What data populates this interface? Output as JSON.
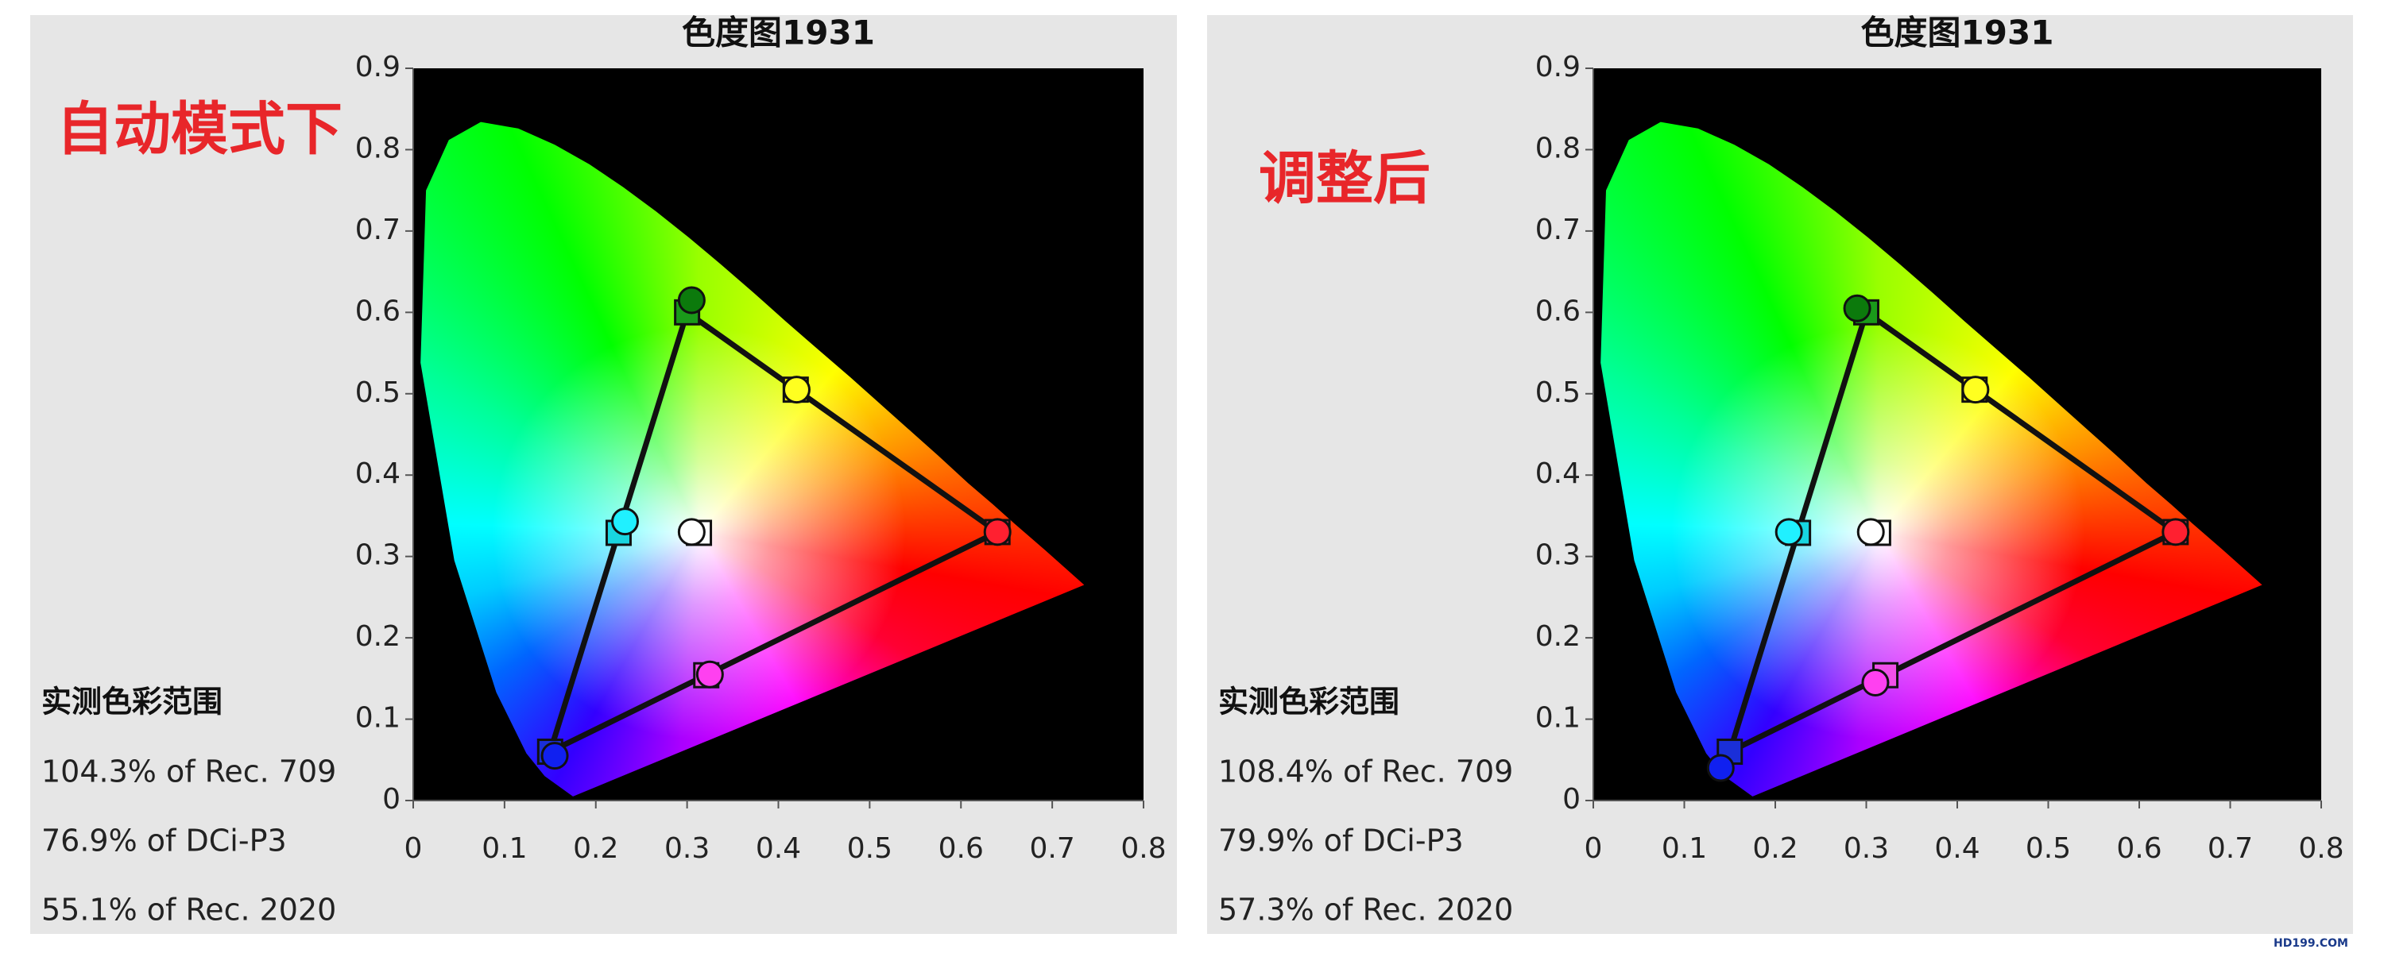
{
  "chart_data": [
    {
      "type": "scatter",
      "title": "色度图1931",
      "annotation": "自动模式下",
      "gamut_title": "实测色彩范围",
      "gamut_results": [
        "104.3% of Rec. 709",
        "76.9% of DCi-P3",
        "55.1% of Rec. 2020"
      ],
      "xlim": [
        0,
        0.8
      ],
      "ylim": [
        0,
        0.9
      ],
      "xticks": [
        0,
        0.1,
        0.2,
        0.3,
        0.4,
        0.5,
        0.6,
        0.7,
        0.8
      ],
      "yticks": [
        0,
        0.1,
        0.2,
        0.3,
        0.4,
        0.5,
        0.6,
        0.7,
        0.8,
        0.9
      ],
      "spectral_locus": {
        "x": [
          0.175,
          0.144,
          0.124,
          0.091,
          0.045,
          0.008,
          0.014,
          0.039,
          0.074,
          0.115,
          0.155,
          0.193,
          0.23,
          0.266,
          0.302,
          0.337,
          0.373,
          0.408,
          0.444,
          0.479,
          0.512,
          0.547,
          0.575,
          0.608,
          0.635,
          0.658,
          0.692,
          0.735
        ],
        "y": [
          0.005,
          0.03,
          0.058,
          0.133,
          0.295,
          0.538,
          0.75,
          0.812,
          0.834,
          0.826,
          0.806,
          0.782,
          0.754,
          0.724,
          0.692,
          0.659,
          0.624,
          0.589,
          0.554,
          0.52,
          0.487,
          0.452,
          0.424,
          0.39,
          0.364,
          0.341,
          0.308,
          0.265
        ]
      },
      "series": [
        {
          "marker": "square",
          "x": [
            0.64,
            0.3,
            0.15,
            0.225,
            0.321,
            0.419,
            0.313
          ],
          "y": [
            0.33,
            0.6,
            0.06,
            0.329,
            0.154,
            0.505,
            0.329
          ],
          "colors": [
            "#e8305a",
            "#1a9a1a",
            "#1a2fd8",
            "#18d6e0",
            "#f050e8",
            "#f4f000",
            "#ffffff"
          ]
        },
        {
          "marker": "circle",
          "x": [
            0.64,
            0.305,
            0.155,
            0.232,
            0.325,
            0.42,
            0.305
          ],
          "y": [
            0.33,
            0.615,
            0.055,
            0.343,
            0.155,
            0.505,
            0.33
          ],
          "colors": [
            "#ff2030",
            "#0c7a0c",
            "#1020f0",
            "#20f0ff",
            "#ff40f0",
            "#ffff20",
            "#ffffff"
          ]
        }
      ]
    },
    {
      "type": "scatter",
      "title": "色度图1931",
      "annotation": "调整后",
      "gamut_title": "实测色彩范围",
      "gamut_results": [
        "108.4% of Rec. 709",
        "79.9% of DCi-P3",
        "57.3% of Rec. 2020"
      ],
      "xlim": [
        0,
        0.8
      ],
      "ylim": [
        0,
        0.9
      ],
      "xticks": [
        0,
        0.1,
        0.2,
        0.3,
        0.4,
        0.5,
        0.6,
        0.7,
        0.8
      ],
      "yticks": [
        0,
        0.1,
        0.2,
        0.3,
        0.4,
        0.5,
        0.6,
        0.7,
        0.8,
        0.9
      ],
      "spectral_locus": {
        "x": [
          0.175,
          0.144,
          0.124,
          0.091,
          0.045,
          0.008,
          0.014,
          0.039,
          0.074,
          0.115,
          0.155,
          0.193,
          0.23,
          0.266,
          0.302,
          0.337,
          0.373,
          0.408,
          0.444,
          0.479,
          0.512,
          0.547,
          0.575,
          0.608,
          0.635,
          0.658,
          0.692,
          0.735
        ],
        "y": [
          0.005,
          0.03,
          0.058,
          0.133,
          0.295,
          0.538,
          0.75,
          0.812,
          0.834,
          0.826,
          0.806,
          0.782,
          0.754,
          0.724,
          0.692,
          0.659,
          0.624,
          0.589,
          0.554,
          0.52,
          0.487,
          0.452,
          0.424,
          0.39,
          0.364,
          0.341,
          0.308,
          0.265
        ]
      },
      "series": [
        {
          "marker": "square",
          "x": [
            0.64,
            0.3,
            0.15,
            0.225,
            0.321,
            0.419,
            0.313
          ],
          "y": [
            0.33,
            0.6,
            0.06,
            0.329,
            0.154,
            0.505,
            0.329
          ],
          "colors": [
            "#e8305a",
            "#1a9a1a",
            "#1a2fd8",
            "#18d6e0",
            "#f050e8",
            "#f4f000",
            "#ffffff"
          ]
        },
        {
          "marker": "circle",
          "x": [
            0.64,
            0.29,
            0.14,
            0.215,
            0.31,
            0.42,
            0.305
          ],
          "y": [
            0.33,
            0.605,
            0.04,
            0.33,
            0.145,
            0.505,
            0.33
          ],
          "colors": [
            "#ff2030",
            "#0c7a0c",
            "#1020f0",
            "#20f0ff",
            "#ff40f0",
            "#ffff20",
            "#ffffff"
          ]
        }
      ]
    }
  ],
  "watermark": "HD199.COM"
}
